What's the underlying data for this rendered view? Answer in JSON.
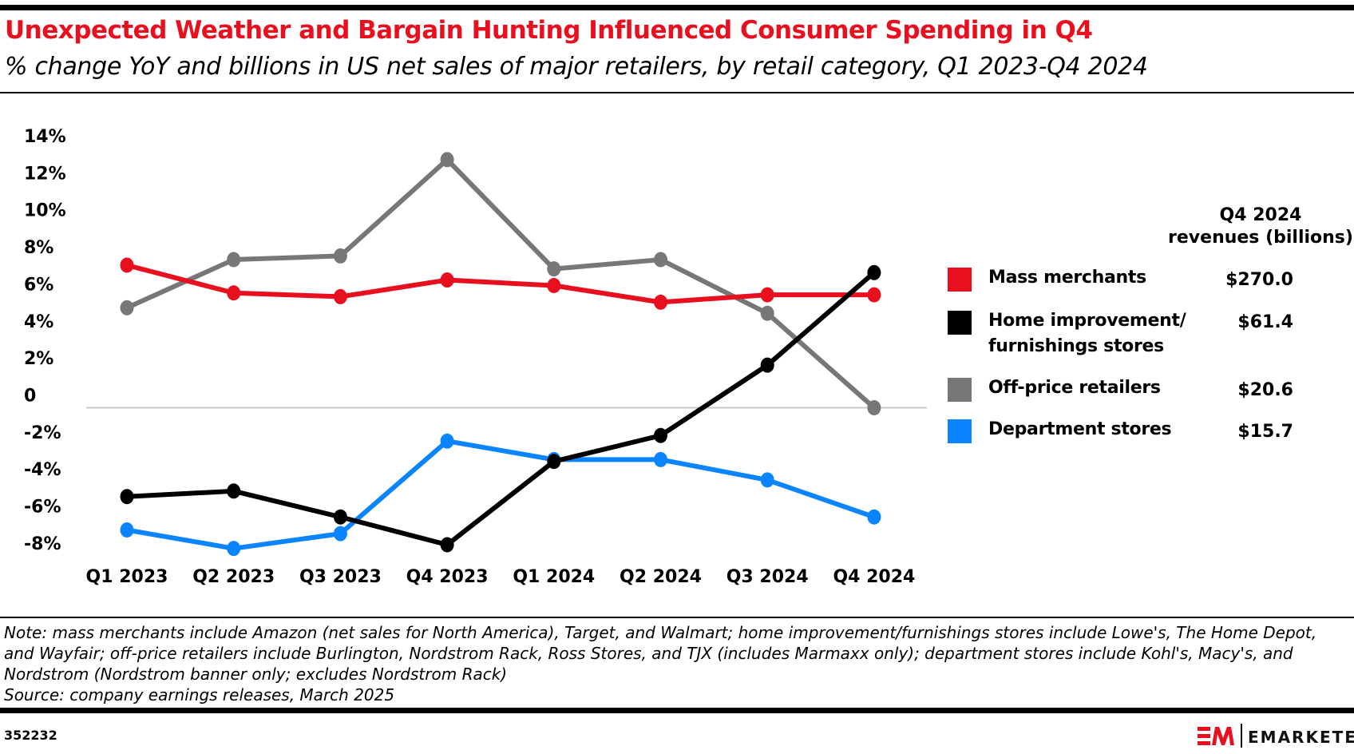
{
  "title": "Unexpected Weather and Bargain Hunting Influenced Consumer Spending in Q4",
  "subtitle": "% change YoY and billions in US net sales of major retailers, by retail category, Q1 2023-Q4 2024",
  "note": "Note: mass merchants include Amazon (net sales for North America), Target, and Walmart; home improvement/furnishings stores include Lowe's, The Home Depot, and Wayfair; off-price retailers include Burlington, Nordstrom Rack, Ross Stores, and TJX (includes Marmaxx only); department stores include Kohl's, Macy's, and Nordstrom (Nordstrom banner only; excludes Nordstrom Rack)",
  "source": "Source: company earnings releases, March 2025",
  "chart_id": "352232",
  "brand": {
    "logo_text": "EMARKETER",
    "accent": "#e8101e"
  },
  "legend": {
    "header_line1": "Q4 2024",
    "header_line2": "revenues (billions)",
    "items": [
      {
        "label": "Mass merchants",
        "label2": "",
        "value": "$270.0",
        "color": "#e8101e"
      },
      {
        "label": "Home improvement/",
        "label2": "furnishings stores",
        "value": "$61.4",
        "color": "#000000"
      },
      {
        "label": "Off-price retailers",
        "label2": "",
        "value": "$20.6",
        "color": "#777777"
      },
      {
        "label": "Department stores",
        "label2": "",
        "value": "$15.7",
        "color": "#0a84ff"
      }
    ]
  },
  "chart_data": {
    "type": "line",
    "categories": [
      "Q1 2023",
      "Q2 2023",
      "Q3 2023",
      "Q4 2023",
      "Q1 2024",
      "Q2 2024",
      "Q3 2024",
      "Q4 2024"
    ],
    "y_ticks": [
      "14%",
      "12%",
      "10%",
      "8%",
      "6%",
      "4%",
      "2%",
      "0",
      "-2%",
      "-4%",
      "-6%",
      "-8%"
    ],
    "ylim": [
      -8,
      14
    ],
    "grid": false,
    "zero_line": true,
    "legend_position": "right",
    "series": [
      {
        "name": "Mass merchants",
        "color": "#e8101e",
        "values": [
          7.7,
          6.2,
          6.0,
          6.9,
          6.6,
          5.7,
          6.1,
          6.1
        ]
      },
      {
        "name": "Home improvement/furnishings stores",
        "color": "#000000",
        "values": [
          -4.8,
          -4.5,
          -5.9,
          -7.4,
          -2.9,
          -1.5,
          2.3,
          7.3
        ]
      },
      {
        "name": "Off-price retailers",
        "color": "#777777",
        "values": [
          5.4,
          8.0,
          8.2,
          13.4,
          7.5,
          8.0,
          5.1,
          0.0
        ]
      },
      {
        "name": "Department stores",
        "color": "#0a84ff",
        "values": [
          -6.6,
          -7.6,
          -6.8,
          -1.8,
          -2.8,
          -2.8,
          -3.9,
          -5.9
        ]
      }
    ]
  }
}
